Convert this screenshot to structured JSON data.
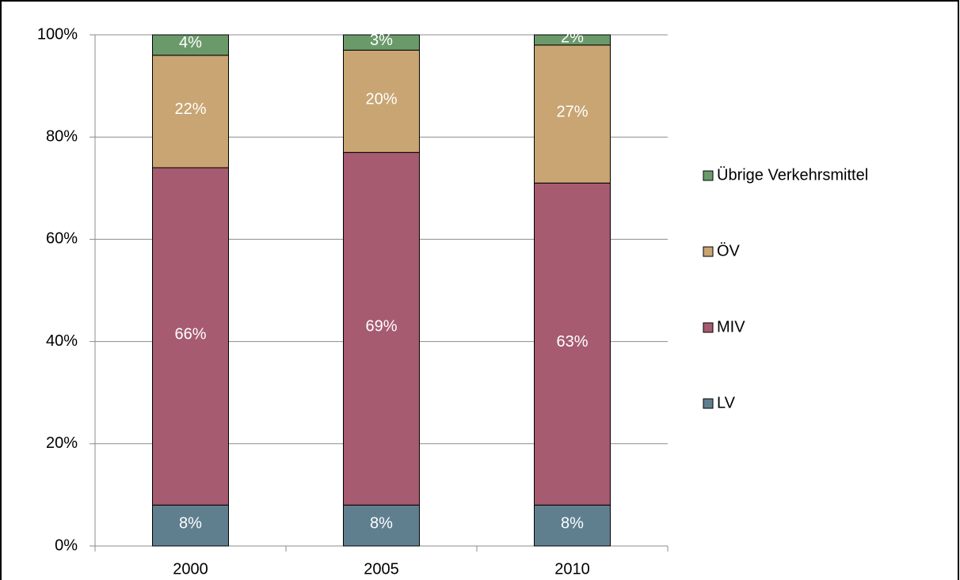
{
  "chart_data": {
    "type": "stacked_bar",
    "categories": [
      "2000",
      "2005",
      "2010"
    ],
    "series": [
      {
        "name": "LV",
        "color": "#5f7f8f",
        "values": [
          8,
          8,
          8
        ],
        "value_labels": [
          "8%",
          "8%",
          "8%"
        ]
      },
      {
        "name": "MIV",
        "color": "#a65b70",
        "values": [
          66,
          69,
          63
        ],
        "value_labels": [
          "66%",
          "69%",
          "63%"
        ]
      },
      {
        "name": "ÖV",
        "color": "#c8a572",
        "values": [
          22,
          20,
          27
        ],
        "value_labels": [
          "22%",
          "20%",
          "27%"
        ]
      },
      {
        "name": "Übrige Verkehrsmittel",
        "color": "#6b9a6a",
        "values": [
          4,
          3,
          2
        ],
        "value_labels": [
          "4%",
          "3%",
          "2%"
        ]
      }
    ],
    "ylim": [
      0,
      100
    ],
    "yticks": [
      {
        "value": 0,
        "label": "0%"
      },
      {
        "value": 20,
        "label": "20%"
      },
      {
        "value": 40,
        "label": "40%"
      },
      {
        "value": 60,
        "label": "60%"
      },
      {
        "value": 80,
        "label": "80%"
      },
      {
        "value": 100,
        "label": "100%"
      }
    ],
    "grid": true,
    "legend": "right"
  }
}
